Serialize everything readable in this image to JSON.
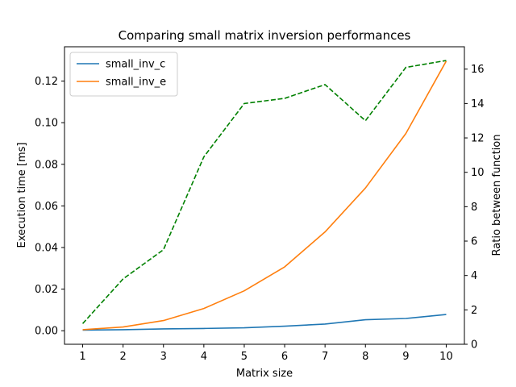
{
  "chart_data": {
    "type": "line",
    "title": "Comparing small matrix inversion performances",
    "xlabel": "Matrix size",
    "ylabel": "Execution time [ms]",
    "y2label": "Ratio between function",
    "x": [
      1,
      2,
      3,
      4,
      5,
      6,
      7,
      8,
      9,
      10
    ],
    "xlim": [
      0.55,
      10.45
    ],
    "ylim": [
      -0.0065,
      0.1365
    ],
    "y2lim": [
      0,
      17.3
    ],
    "xticks": [
      "1",
      "2",
      "3",
      "4",
      "5",
      "6",
      "7",
      "8",
      "9",
      "10"
    ],
    "yticks": [
      "0.00",
      "0.02",
      "0.04",
      "0.06",
      "0.08",
      "0.10",
      "0.12"
    ],
    "y2ticks": [
      "0",
      "2",
      "4",
      "6",
      "8",
      "10",
      "12",
      "14",
      "16"
    ],
    "grid": false,
    "legend_position": "top-left",
    "series": [
      {
        "name": "small_inv_c",
        "axis": "left",
        "color": "#1f77b4",
        "style": "solid",
        "values": [
          0.0003,
          0.0005,
          0.0009,
          0.0011,
          0.0014,
          0.0022,
          0.0032,
          0.0053,
          0.0059,
          0.0078
        ]
      },
      {
        "name": "small_inv_e",
        "axis": "left",
        "color": "#ff7f0e",
        "style": "solid",
        "values": [
          0.0005,
          0.0018,
          0.0049,
          0.0107,
          0.0192,
          0.0307,
          0.0475,
          0.0686,
          0.0948,
          0.1296
        ]
      },
      {
        "axis": "right",
        "color": "#008000",
        "style": "dashed",
        "values": [
          1.2,
          3.8,
          5.5,
          10.9,
          14.0,
          14.3,
          15.1,
          13.0,
          16.1,
          16.5
        ]
      }
    ]
  }
}
